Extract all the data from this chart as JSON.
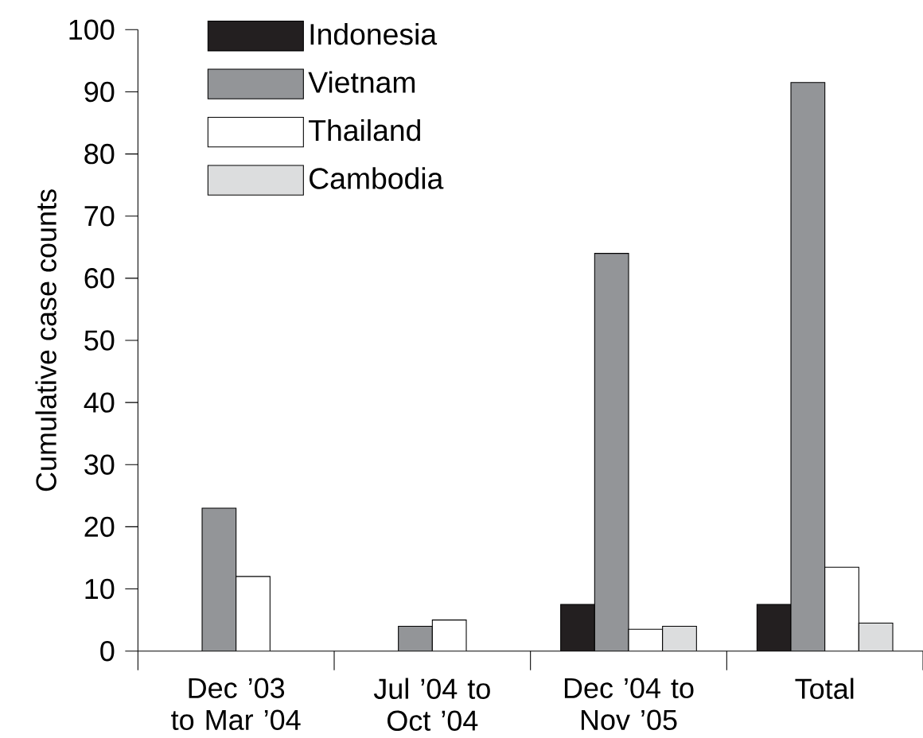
{
  "chart_data": {
    "type": "bar",
    "ylabel": "Cumulative case counts",
    "categories": [
      "Dec ’03 to Mar ’04",
      "Jul ’04 to Oct ’04",
      "Dec ’04 to Nov ’05",
      "Total"
    ],
    "series": [
      {
        "name": "Indonesia",
        "color": "#231f20",
        "values": [
          null,
          null,
          7.5,
          7.5
        ]
      },
      {
        "name": "Vietnam",
        "color": "#939598",
        "values": [
          23,
          4,
          64,
          91.5
        ]
      },
      {
        "name": "Thailand",
        "color": "#ffffff",
        "values": [
          12,
          5,
          3.5,
          13.5
        ]
      },
      {
        "name": "Cambodia",
        "color": "#dcddde",
        "values": [
          null,
          null,
          4,
          4.5
        ]
      }
    ],
    "ylim": [
      0,
      100
    ],
    "yticks": [
      0,
      10,
      20,
      30,
      40,
      50,
      60,
      70,
      80,
      90,
      100
    ],
    "legend": "top left",
    "grid": false
  }
}
